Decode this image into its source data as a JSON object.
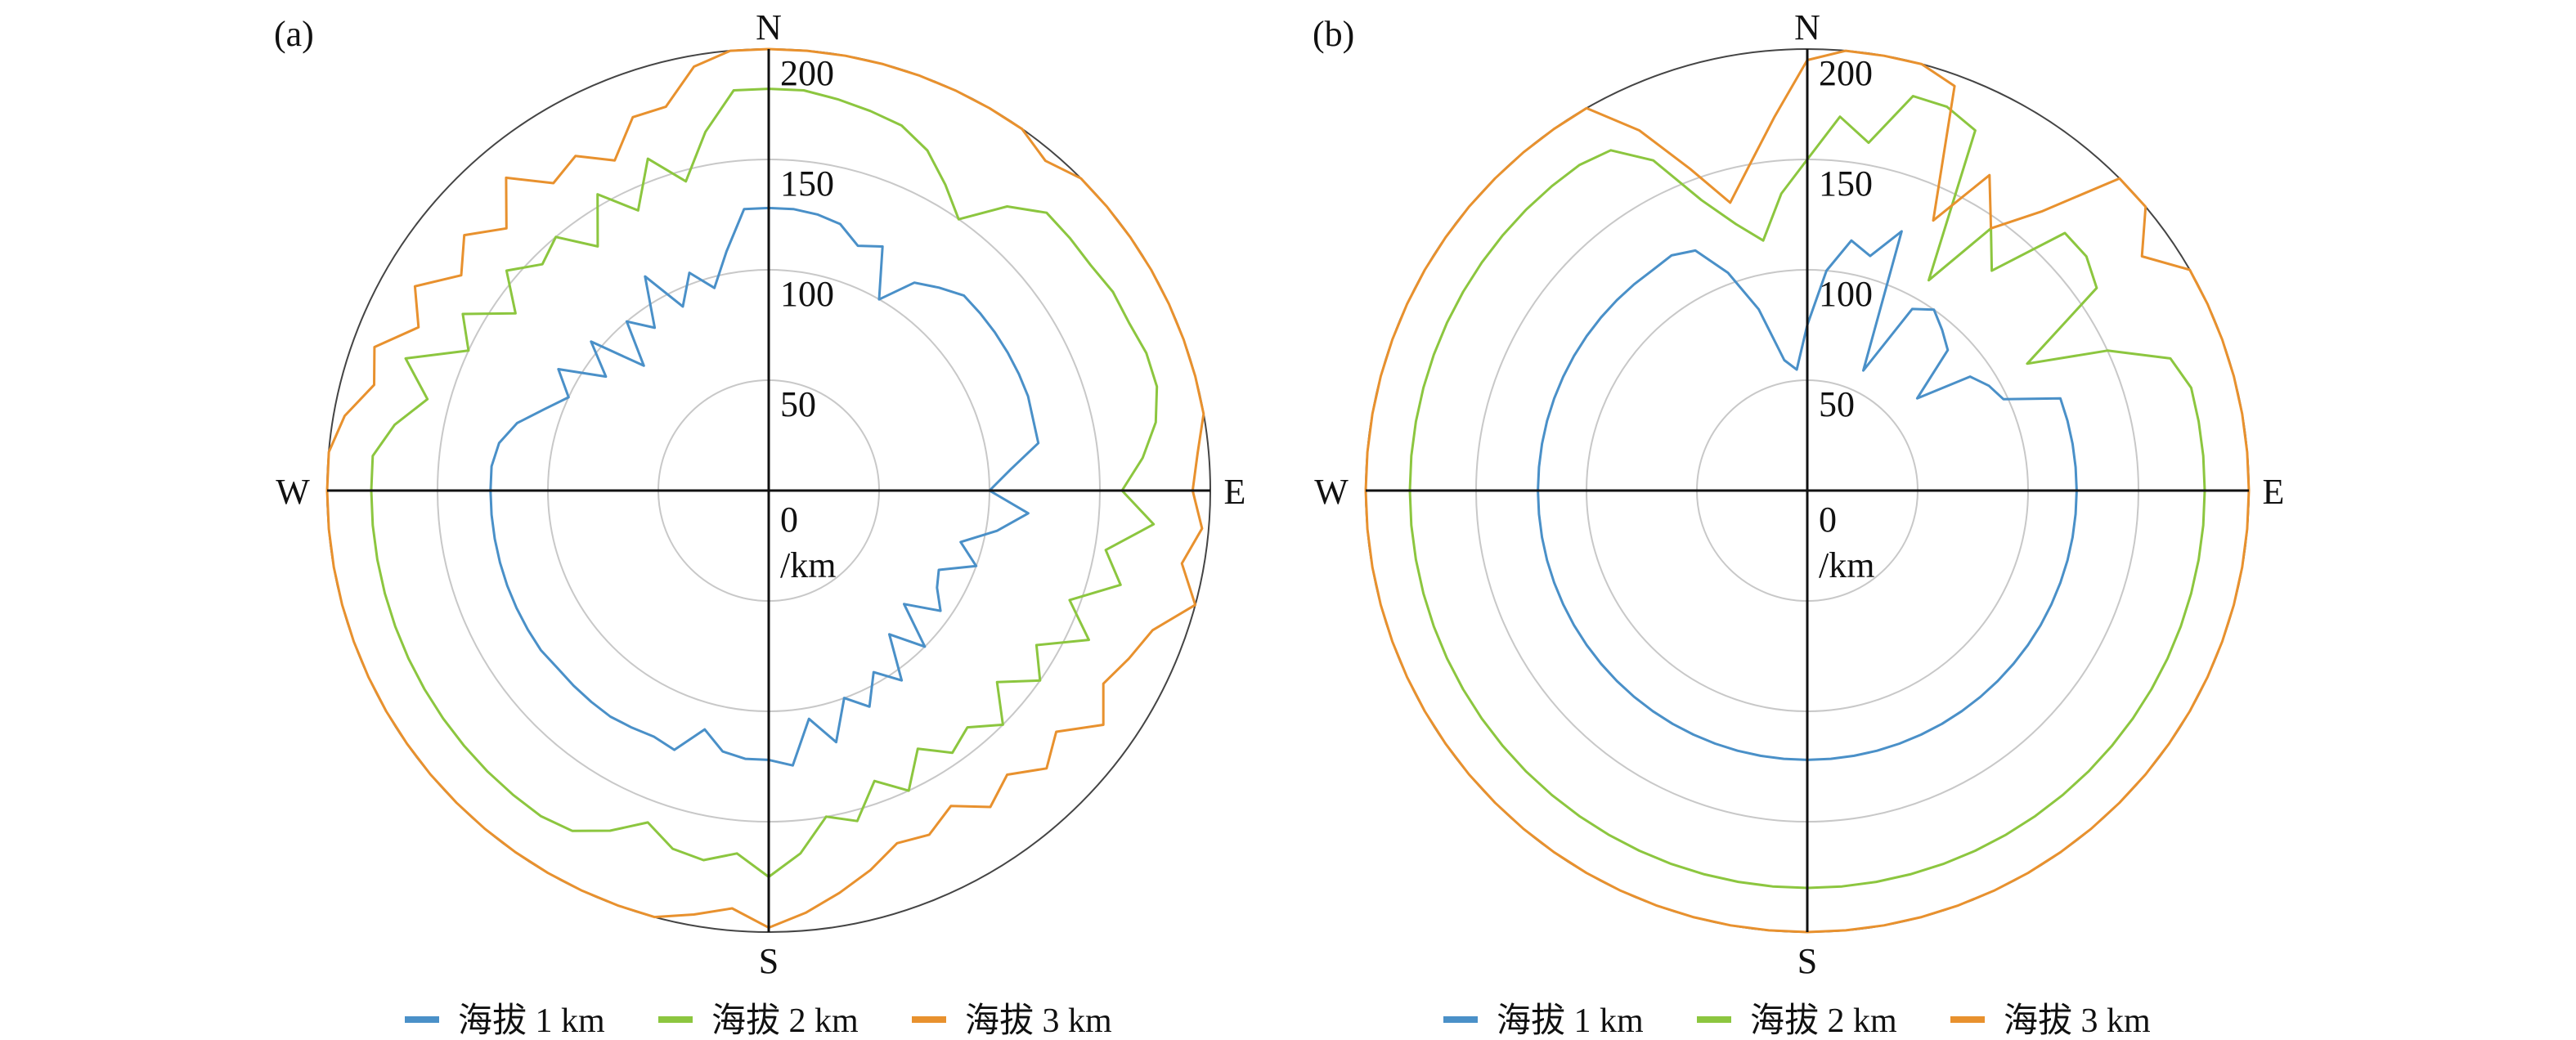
{
  "chart_data": [
    {
      "type": "line",
      "subtype": "polar",
      "panel_label": "(a)",
      "directions": [
        "N",
        "E",
        "S",
        "W"
      ],
      "radial_ticks": [
        "0",
        "50",
        "100",
        "150",
        "200"
      ],
      "radial_unit": "/km",
      "rlim": [
        0,
        200
      ],
      "grid": true,
      "legend_position": "bottom",
      "bearing_deg": [
        0,
        5,
        10,
        15,
        20,
        25,
        30,
        35,
        40,
        45,
        50,
        55,
        60,
        65,
        70,
        75,
        80,
        85,
        90,
        95,
        100,
        105,
        110,
        115,
        120,
        125,
        130,
        135,
        140,
        145,
        150,
        155,
        160,
        165,
        170,
        175,
        180,
        185,
        190,
        195,
        200,
        205,
        210,
        215,
        220,
        225,
        230,
        235,
        240,
        245,
        250,
        255,
        260,
        265,
        270,
        275,
        280,
        285,
        290,
        295,
        300,
        305,
        310,
        315,
        320,
        325,
        330,
        335,
        340,
        345,
        350,
        355
      ],
      "series": [
        {
          "name": "海拔 1 km",
          "color": "#4a90c8",
          "values": [
            128,
            128,
            127,
            125,
            118,
            122,
            100,
            115,
            120,
            125,
            125,
            125,
            125,
            125,
            125,
            124,
            124,
            110,
            100,
            118,
            105,
            90,
            100,
            85,
            88,
            95,
            80,
            100,
            85,
            105,
            95,
            108,
            100,
            118,
            105,
            125,
            122,
            122,
            120,
            112,
            125,
            123,
            124,
            125,
            125,
            125,
            125,
            126,
            126,
            126,
            126,
            126,
            126,
            126,
            126,
            126,
            124,
            118,
            108,
            100,
            110,
            90,
            105,
            80,
            100,
            90,
            112,
            92,
            105,
            95,
            110,
            128
          ]
        },
        {
          "name": "海拔 2 km",
          "color": "#8cc63f",
          "values": [
            182,
            182,
            180,
            178,
            176,
            170,
            160,
            150,
            168,
            178,
            178,
            178,
            180,
            180,
            182,
            182,
            178,
            170,
            160,
            175,
            155,
            165,
            145,
            160,
            140,
            150,
            135,
            150,
            140,
            145,
            135,
            150,
            140,
            155,
            150,
            165,
            175,
            165,
            170,
            168,
            160,
            170,
            178,
            180,
            180,
            180,
            180,
            180,
            180,
            180,
            180,
            180,
            180,
            180,
            180,
            180,
            172,
            160,
            175,
            150,
            160,
            140,
            155,
            145,
            150,
            135,
            155,
            140,
            160,
            145,
            165,
            182
          ]
        },
        {
          "name": "海拔 3 km",
          "color": "#e8912e",
          "values": [
            200,
            200,
            200,
            200,
            200,
            200,
            200,
            200,
            195,
            200,
            200,
            200,
            200,
            200,
            200,
            200,
            200,
            195,
            192,
            197,
            190,
            200,
            185,
            180,
            175,
            185,
            170,
            178,
            168,
            175,
            165,
            172,
            170,
            178,
            185,
            192,
            198,
            190,
            195,
            200,
            200,
            200,
            200,
            200,
            200,
            200,
            200,
            200,
            200,
            200,
            200,
            200,
            200,
            200,
            200,
            200,
            195,
            185,
            190,
            175,
            185,
            170,
            180,
            168,
            185,
            170,
            175,
            165,
            180,
            180,
            195,
            200
          ]
        }
      ]
    },
    {
      "type": "line",
      "subtype": "polar",
      "panel_label": "(b)",
      "directions": [
        "N",
        "E",
        "S",
        "W"
      ],
      "radial_ticks": [
        "0",
        "50",
        "100",
        "150",
        "200"
      ],
      "radial_unit": "/km",
      "rlim": [
        0,
        200
      ],
      "grid": true,
      "legend_position": "bottom",
      "bearing_deg": [
        0,
        5,
        10,
        15,
        20,
        25,
        30,
        35,
        40,
        45,
        50,
        55,
        60,
        65,
        70,
        75,
        80,
        85,
        90,
        95,
        100,
        105,
        110,
        115,
        120,
        125,
        130,
        135,
        140,
        145,
        150,
        155,
        160,
        165,
        170,
        175,
        180,
        185,
        190,
        195,
        200,
        205,
        210,
        215,
        220,
        225,
        230,
        235,
        240,
        245,
        250,
        255,
        260,
        265,
        270,
        275,
        280,
        285,
        290,
        295,
        300,
        305,
        310,
        315,
        320,
        325,
        330,
        335,
        340,
        345,
        350,
        355
      ],
      "series": [
        {
          "name": "海拔 1 km",
          "color": "#4a90c8",
          "values": [
            75,
            100,
            115,
            110,
            125,
            60,
            95,
            100,
            95,
            90,
            65,
            90,
            95,
            98,
            122,
            122,
            122,
            122,
            122,
            122,
            122,
            122,
            122,
            122,
            122,
            122,
            122,
            122,
            122,
            122,
            122,
            122,
            122,
            122,
            122,
            122,
            122,
            122,
            122,
            122,
            122,
            122,
            122,
            122,
            122,
            122,
            122,
            122,
            122,
            122,
            122,
            122,
            122,
            122,
            122,
            122,
            122,
            122,
            122,
            122,
            122,
            122,
            122,
            122,
            122,
            122,
            123,
            120,
            105,
            85,
            60,
            55
          ]
        },
        {
          "name": "海拔 2 km",
          "color": "#8cc63f",
          "values": [
            150,
            170,
            160,
            185,
            185,
            180,
            110,
            145,
            130,
            165,
            165,
            160,
            115,
            150,
            175,
            180,
            180,
            180,
            180,
            180,
            180,
            180,
            180,
            180,
            180,
            180,
            180,
            180,
            180,
            180,
            180,
            180,
            180,
            180,
            180,
            180,
            180,
            180,
            180,
            180,
            180,
            180,
            180,
            180,
            180,
            180,
            180,
            180,
            180,
            180,
            180,
            180,
            180,
            180,
            180,
            180,
            180,
            180,
            180,
            180,
            180,
            180,
            180,
            180,
            180,
            180,
            178,
            165,
            140,
            125,
            115,
            135
          ]
        },
        {
          "name": "海拔 3 km",
          "color": "#e8912e",
          "values": [
            195,
            200,
            200,
            200,
            195,
            135,
            165,
            145,
            165,
            200,
            200,
            185,
            200,
            200,
            200,
            200,
            200,
            200,
            200,
            200,
            200,
            200,
            200,
            200,
            200,
            200,
            200,
            200,
            200,
            200,
            200,
            200,
            200,
            200,
            200,
            200,
            200,
            200,
            200,
            200,
            200,
            200,
            200,
            200,
            200,
            200,
            200,
            200,
            200,
            200,
            200,
            200,
            200,
            200,
            200,
            200,
            200,
            200,
            200,
            200,
            200,
            200,
            200,
            200,
            200,
            200,
            200,
            180,
            155,
            135,
            150,
            170
          ]
        }
      ]
    }
  ]
}
